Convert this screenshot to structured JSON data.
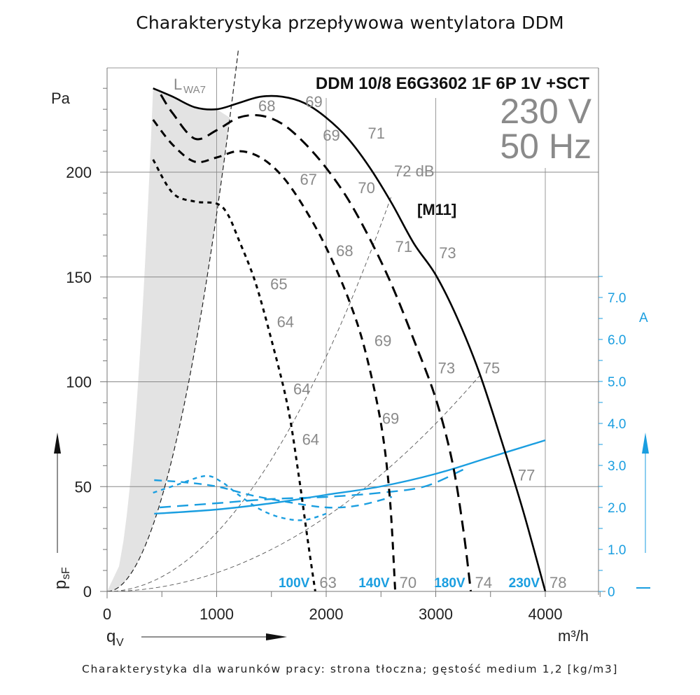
{
  "title": "Charakterystyka przepływowa wentylatora DDM",
  "footer": "Charakterystyka dla warunków pracy: strona tłoczna; gęstość medium 1,2 [kg/m3]",
  "chart_data": {
    "type": "line",
    "title": "Charakterystyka przepływowa wentylatora DDM",
    "model": "DDM 10/8 E6G3602 1F 6P 1V +SCT",
    "voltage_label": "230 V",
    "frequency_label": "50 Hz",
    "motor_code": "[M11]",
    "lwa_label": "L",
    "lwa_sub": "WA7",
    "xlabel": "q",
    "xlabel_sub": "V",
    "xunit": "m³/h",
    "ylabel": "p",
    "ylabel_sub": "sF",
    "yunit": "Pa",
    "y2unit": "A",
    "xlim": [
      0,
      4500
    ],
    "ylim": [
      0,
      250
    ],
    "y2lim": [
      0,
      8.0
    ],
    "grid": true,
    "x_ticks": [
      0,
      1000,
      2000,
      3000,
      4000
    ],
    "x_tick_labels": [
      "0",
      "1000",
      "2000",
      "3000",
      "4000"
    ],
    "y_ticks": [
      0,
      50,
      100,
      150,
      200
    ],
    "y_tick_labels": [
      "0",
      "50",
      "100",
      "150",
      "200"
    ],
    "y2_ticks": [
      0,
      1.0,
      2.0,
      3.0,
      4.0,
      5.0,
      6.0,
      7.0
    ],
    "y2_tick_labels": [
      "0",
      "1.0",
      "2.0",
      "3.0",
      "4.0",
      "5.0",
      "6.0",
      "7.0"
    ],
    "colors": {
      "pressure": "#000000",
      "current": "#1a9ee0",
      "db": "#8a8a8a",
      "grid": "#888888",
      "shade": "#e3e3e3"
    },
    "pressure_series": [
      {
        "name": "230V",
        "dash": "solid",
        "points": [
          [
            420,
            240
          ],
          [
            600,
            236
          ],
          [
            800,
            231
          ],
          [
            1000,
            230
          ],
          [
            1200,
            233
          ],
          [
            1400,
            236
          ],
          [
            1600,
            236
          ],
          [
            1800,
            233
          ],
          [
            2000,
            226
          ],
          [
            2200,
            216
          ],
          [
            2400,
            202
          ],
          [
            2600,
            185
          ],
          [
            2800,
            166
          ],
          [
            3000,
            151
          ],
          [
            3200,
            130
          ],
          [
            3400,
            104
          ],
          [
            3600,
            72
          ],
          [
            3800,
            38
          ],
          [
            4000,
            0
          ]
        ]
      },
      {
        "name": "180V",
        "dash": "long",
        "points": [
          [
            490,
            237
          ],
          [
            600,
            228
          ],
          [
            800,
            216
          ],
          [
            1000,
            220
          ],
          [
            1200,
            226
          ],
          [
            1400,
            227
          ],
          [
            1600,
            223
          ],
          [
            1800,
            214
          ],
          [
            2000,
            202
          ],
          [
            2200,
            187
          ],
          [
            2400,
            168
          ],
          [
            2600,
            146
          ],
          [
            2800,
            120
          ],
          [
            3000,
            92
          ],
          [
            3150,
            62
          ],
          [
            3250,
            30
          ],
          [
            3320,
            0
          ]
        ]
      },
      {
        "name": "140V",
        "dash": "medium",
        "points": [
          [
            420,
            225
          ],
          [
            600,
            213
          ],
          [
            800,
            205
          ],
          [
            1000,
            207
          ],
          [
            1200,
            210
          ],
          [
            1400,
            207
          ],
          [
            1600,
            198
          ],
          [
            1800,
            183
          ],
          [
            2000,
            164
          ],
          [
            2200,
            140
          ],
          [
            2350,
            116
          ],
          [
            2500,
            80
          ],
          [
            2580,
            45
          ],
          [
            2630,
            0
          ]
        ]
      },
      {
        "name": "100V",
        "dash": "short",
        "points": [
          [
            420,
            206
          ],
          [
            600,
            190
          ],
          [
            800,
            186
          ],
          [
            1000,
            185
          ],
          [
            1100,
            180
          ],
          [
            1200,
            168
          ],
          [
            1350,
            148
          ],
          [
            1500,
            120
          ],
          [
            1650,
            88
          ],
          [
            1750,
            55
          ],
          [
            1830,
            25
          ],
          [
            1900,
            0
          ]
        ]
      }
    ],
    "current_series": [
      {
        "name": "230V",
        "dash": "solid",
        "points": [
          [
            430,
            1.85
          ],
          [
            1000,
            1.95
          ],
          [
            1500,
            2.1
          ],
          [
            2000,
            2.3
          ],
          [
            2500,
            2.5
          ],
          [
            3000,
            2.8
          ],
          [
            3500,
            3.2
          ],
          [
            4000,
            3.6
          ]
        ]
      },
      {
        "name": "180V",
        "dash": "long",
        "points": [
          [
            480,
            2.0
          ],
          [
            1000,
            2.1
          ],
          [
            1500,
            2.2
          ],
          [
            2000,
            2.25
          ],
          [
            2500,
            2.35
          ],
          [
            2900,
            2.5
          ],
          [
            3250,
            2.9
          ]
        ]
      },
      {
        "name": "140V",
        "dash": "medium",
        "points": [
          [
            430,
            2.65
          ],
          [
            700,
            2.6
          ],
          [
            1000,
            2.5
          ],
          [
            1300,
            2.3
          ],
          [
            1600,
            2.15
          ],
          [
            2000,
            2.0
          ],
          [
            2300,
            2.05
          ],
          [
            2600,
            2.25
          ]
        ]
      },
      {
        "name": "100V",
        "dash": "short",
        "points": [
          [
            420,
            2.35
          ],
          [
            650,
            2.55
          ],
          [
            900,
            2.75
          ],
          [
            1050,
            2.6
          ],
          [
            1200,
            2.3
          ],
          [
            1400,
            1.95
          ],
          [
            1600,
            1.75
          ],
          [
            1800,
            1.7
          ],
          [
            2000,
            1.85
          ]
        ]
      }
    ],
    "system_curves": [
      {
        "k": 0.00018,
        "x_end": 1200
      },
      {
        "k": 2.8e-05,
        "x_end": 2600
      },
      {
        "k": 8.9e-06,
        "x_end": 3400
      }
    ],
    "shaded_region": {
      "boundary_k": 0.00018,
      "x_start": 420
    },
    "db_annotations": [
      {
        "text": "68",
        "x": 1380,
        "y": 229
      },
      {
        "text": "69",
        "x": 1810,
        "y": 231
      },
      {
        "text": "69",
        "x": 1970,
        "y": 215
      },
      {
        "text": "71",
        "x": 2380,
        "y": 216
      },
      {
        "text": "72 dB",
        "x": 2620,
        "y": 198
      },
      {
        "text": "67",
        "x": 1760,
        "y": 194
      },
      {
        "text": "70",
        "x": 2290,
        "y": 190
      },
      {
        "text": "68",
        "x": 2090,
        "y": 160
      },
      {
        "text": "71",
        "x": 2630,
        "y": 162
      },
      {
        "text": "73",
        "x": 3030,
        "y": 159
      },
      {
        "text": "65",
        "x": 1490,
        "y": 144
      },
      {
        "text": "64",
        "x": 1550,
        "y": 126
      },
      {
        "text": "69",
        "x": 2440,
        "y": 117
      },
      {
        "text": "73",
        "x": 3020,
        "y": 104
      },
      {
        "text": "75",
        "x": 3430,
        "y": 104
      },
      {
        "text": "64",
        "x": 1700,
        "y": 94
      },
      {
        "text": "69",
        "x": 2510,
        "y": 80
      },
      {
        "text": "64",
        "x": 1780,
        "y": 70
      },
      {
        "text": "77",
        "x": 3750,
        "y": 53
      }
    ],
    "voltage_labels": [
      {
        "voltage": "100V",
        "db": "63",
        "x": 1900
      },
      {
        "voltage": "140V",
        "db": "70",
        "x": 2630
      },
      {
        "voltage": "180V",
        "db": "74",
        "x": 3320
      },
      {
        "voltage": "230V",
        "db": "78",
        "x": 4000
      }
    ]
  }
}
